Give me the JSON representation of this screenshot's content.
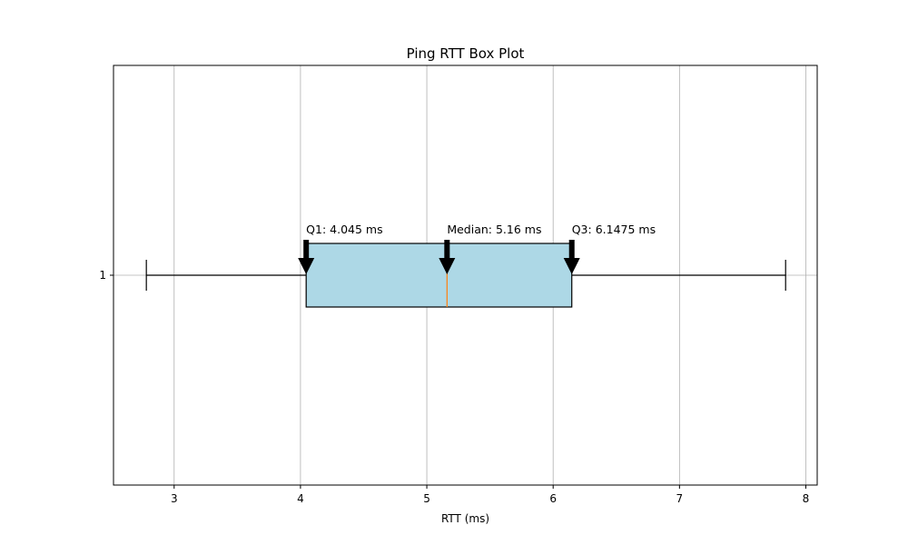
{
  "chart_data": {
    "type": "box",
    "title": "Ping RTT Box Plot",
    "xlabel": "RTT (ms)",
    "ylabel": "",
    "orientation": "horizontal",
    "xlim": [
      2.52,
      8.09
    ],
    "xticks": [
      3,
      4,
      5,
      6,
      7,
      8
    ],
    "xtick_labels": [
      "3",
      "4",
      "5",
      "6",
      "7",
      "8"
    ],
    "yticks": [
      1
    ],
    "ytick_labels": [
      "1"
    ],
    "grid": true,
    "box": {
      "position": 1,
      "whisker_low": 2.78,
      "q1": 4.045,
      "median": 5.16,
      "q3": 6.1475,
      "whisker_high": 7.84
    },
    "annotations": [
      {
        "text": "Q1: 4.045 ms",
        "x": 4.045
      },
      {
        "text": "Median: 5.16 ms",
        "x": 5.16
      },
      {
        "text": "Q3: 6.1475 ms",
        "x": 6.1475
      }
    ],
    "colors": {
      "box_fill": "#add8e6",
      "median_line": "#ff7f0e",
      "grid": "#b0b0b0",
      "arrow": "#000000"
    }
  }
}
